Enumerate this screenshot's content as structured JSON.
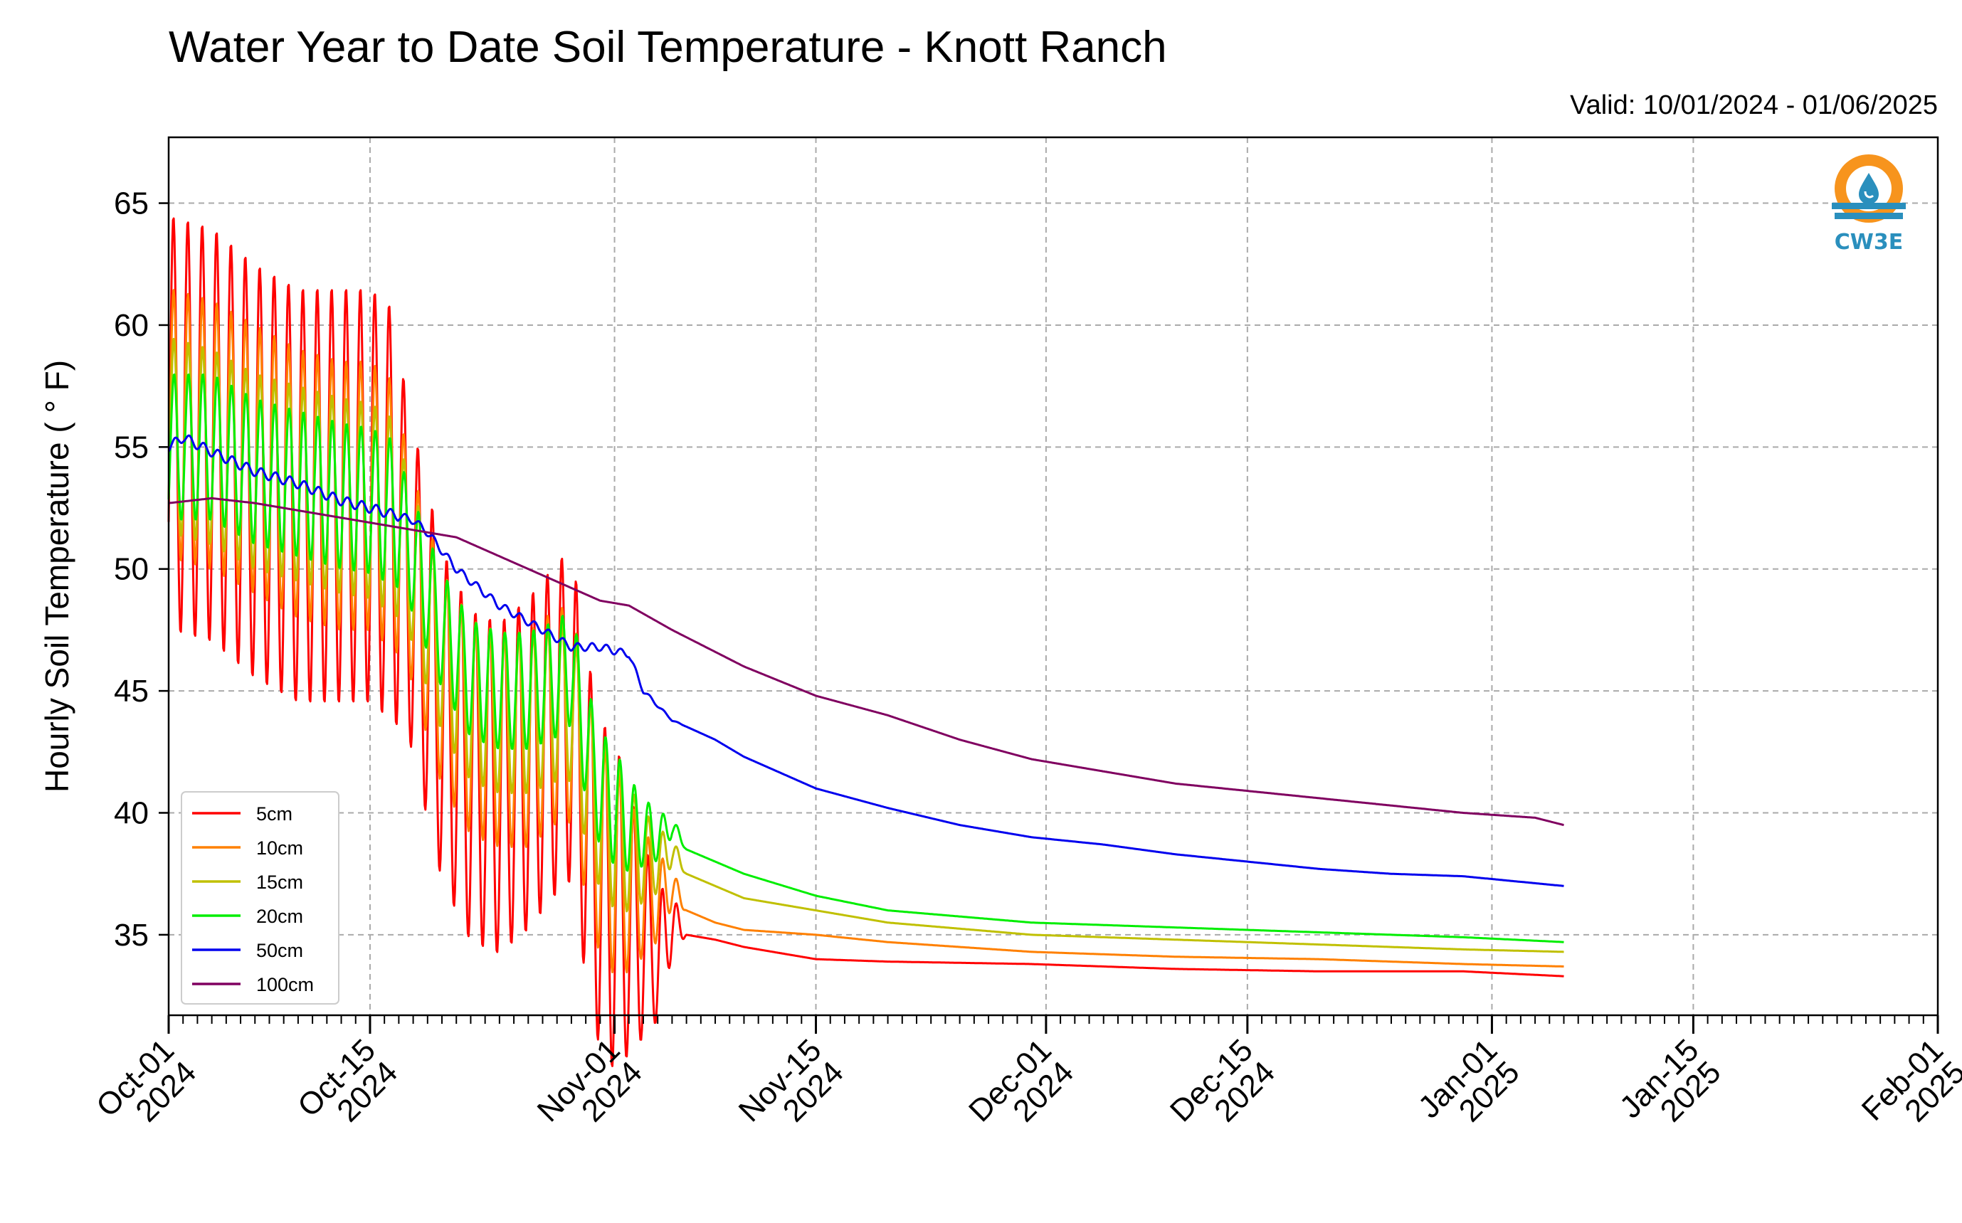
{
  "chart_data": {
    "type": "line",
    "title": "Water Year to Date Soil Temperature - Knott Ranch",
    "subtitle": "Valid: 10/01/2024 - 01/06/2025",
    "ylabel": "Hourly Soil Temperature ($^\\circ$F)",
    "ylabel_display": "Hourly Soil Temperature ( ° F)",
    "xlabel": "",
    "ylim": [
      31.7,
      67.7
    ],
    "xlim_days": [
      0,
      123
    ],
    "yticks": [
      "35",
      "40",
      "45",
      "50",
      "55",
      "60",
      "65"
    ],
    "ytick_values": [
      35,
      40,
      45,
      50,
      55,
      60,
      65
    ],
    "xticks": [
      {
        "day": 0,
        "line1": "Oct-01",
        "line2": "2024"
      },
      {
        "day": 14,
        "line1": "Oct-15",
        "line2": "2024"
      },
      {
        "day": 31,
        "line1": "Nov-01",
        "line2": "2024"
      },
      {
        "day": 45,
        "line1": "Nov-15",
        "line2": "2024"
      },
      {
        "day": 61,
        "line1": "Dec-01",
        "line2": "2024"
      },
      {
        "day": 75,
        "line1": "Dec-15",
        "line2": "2024"
      },
      {
        "day": 92,
        "line1": "Jan-01",
        "line2": "2025"
      },
      {
        "day": 106,
        "line1": "Jan-15",
        "line2": "2025"
      },
      {
        "day": 123,
        "line1": "Feb-01",
        "line2": "2025"
      }
    ],
    "grid": true,
    "legend_position": "lower-left",
    "logo_text": "CW3E",
    "series": [
      {
        "name": "5cm",
        "color": "#ff0000",
        "amp": 8.5,
        "phase": 0.5,
        "points": [
          [
            0,
            56
          ],
          [
            3,
            55.5
          ],
          [
            6,
            54
          ],
          [
            9,
            53
          ],
          [
            12,
            53
          ],
          [
            14,
            53
          ],
          [
            16,
            52
          ],
          [
            17,
            49
          ],
          [
            19,
            44
          ],
          [
            21,
            41.5
          ],
          [
            23,
            41
          ],
          [
            25,
            42
          ],
          [
            27,
            43.5
          ],
          [
            28,
            44
          ],
          [
            29,
            40
          ],
          [
            30,
            37
          ],
          [
            32,
            35.5
          ],
          [
            34,
            34.2
          ],
          [
            35,
            35.5
          ],
          [
            36,
            35
          ],
          [
            38,
            34.8
          ],
          [
            40,
            34.5
          ],
          [
            45,
            34
          ],
          [
            50,
            33.9
          ],
          [
            60,
            33.8
          ],
          [
            70,
            33.6
          ],
          [
            80,
            33.5
          ],
          [
            90,
            33.5
          ],
          [
            97,
            33.3
          ]
        ]
      },
      {
        "name": "10cm",
        "color": "#ff8000",
        "amp": 5.5,
        "phase": 0.6,
        "points": [
          [
            0,
            56
          ],
          [
            3,
            55.5
          ],
          [
            6,
            54.5
          ],
          [
            9,
            53.5
          ],
          [
            12,
            53
          ],
          [
            14,
            53
          ],
          [
            16,
            52
          ],
          [
            17,
            49.5
          ],
          [
            19,
            45.5
          ],
          [
            21,
            43.5
          ],
          [
            23,
            43
          ],
          [
            25,
            43
          ],
          [
            27,
            44
          ],
          [
            28,
            44
          ],
          [
            29,
            41
          ],
          [
            30,
            38.5
          ],
          [
            32,
            37
          ],
          [
            34,
            36.5
          ],
          [
            35,
            37
          ],
          [
            36,
            36
          ],
          [
            38,
            35.5
          ],
          [
            40,
            35.2
          ],
          [
            45,
            35
          ],
          [
            50,
            34.7
          ],
          [
            60,
            34.3
          ],
          [
            70,
            34.1
          ],
          [
            80,
            34
          ],
          [
            90,
            33.8
          ],
          [
            97,
            33.7
          ]
        ]
      },
      {
        "name": "15cm",
        "color": "#c0c000",
        "amp": 4.0,
        "phase": 0.7,
        "points": [
          [
            0,
            55.5
          ],
          [
            3,
            55
          ],
          [
            6,
            54
          ],
          [
            9,
            53.5
          ],
          [
            12,
            53
          ],
          [
            14,
            52.8
          ],
          [
            16,
            52
          ],
          [
            17,
            50
          ],
          [
            19,
            46.5
          ],
          [
            21,
            44.5
          ],
          [
            23,
            44
          ],
          [
            25,
            44
          ],
          [
            27,
            44.5
          ],
          [
            28,
            44.5
          ],
          [
            29,
            42
          ],
          [
            30,
            40
          ],
          [
            32,
            38.5
          ],
          [
            34,
            38
          ],
          [
            35,
            38.5
          ],
          [
            36,
            37.5
          ],
          [
            38,
            37
          ],
          [
            40,
            36.5
          ],
          [
            45,
            36
          ],
          [
            50,
            35.5
          ],
          [
            60,
            35
          ],
          [
            70,
            34.8
          ],
          [
            80,
            34.6
          ],
          [
            90,
            34.4
          ],
          [
            97,
            34.3
          ]
        ]
      },
      {
        "name": "20cm",
        "color": "#00ee00",
        "amp": 3.0,
        "phase": 0.8,
        "points": [
          [
            0,
            55
          ],
          [
            3,
            55
          ],
          [
            6,
            54
          ],
          [
            9,
            53.5
          ],
          [
            12,
            53
          ],
          [
            14,
            52.8
          ],
          [
            16,
            52.2
          ],
          [
            17,
            50.5
          ],
          [
            19,
            47.5
          ],
          [
            21,
            45.5
          ],
          [
            23,
            45
          ],
          [
            25,
            45
          ],
          [
            27,
            45.5
          ],
          [
            28,
            46
          ],
          [
            29,
            43
          ],
          [
            30,
            41
          ],
          [
            32,
            39.5
          ],
          [
            34,
            39
          ],
          [
            35,
            39.5
          ],
          [
            36,
            38.5
          ],
          [
            38,
            38
          ],
          [
            40,
            37.5
          ],
          [
            45,
            36.6
          ],
          [
            50,
            36
          ],
          [
            60,
            35.5
          ],
          [
            70,
            35.3
          ],
          [
            80,
            35.1
          ],
          [
            90,
            34.9
          ],
          [
            97,
            34.7
          ]
        ]
      },
      {
        "name": "50cm",
        "color": "#0000ee",
        "amp": 0.2,
        "phase": 1.2,
        "points": [
          [
            0,
            55
          ],
          [
            1,
            55.4
          ],
          [
            3,
            54.8
          ],
          [
            6,
            54
          ],
          [
            9,
            53.5
          ],
          [
            12,
            52.8
          ],
          [
            14,
            52.5
          ],
          [
            17,
            52
          ],
          [
            18,
            51.5
          ],
          [
            20,
            50
          ],
          [
            23,
            48.5
          ],
          [
            26,
            47.5
          ],
          [
            28,
            46.8
          ],
          [
            30,
            46.8
          ],
          [
            32,
            46.5
          ],
          [
            33,
            45
          ],
          [
            35,
            43.8
          ],
          [
            38,
            43
          ],
          [
            40,
            42.3
          ],
          [
            45,
            41
          ],
          [
            50,
            40.2
          ],
          [
            55,
            39.5
          ],
          [
            60,
            39
          ],
          [
            65,
            38.7
          ],
          [
            70,
            38.3
          ],
          [
            75,
            38
          ],
          [
            80,
            37.7
          ],
          [
            85,
            37.5
          ],
          [
            90,
            37.4
          ],
          [
            97,
            37
          ]
        ]
      },
      {
        "name": "100cm",
        "color": "#800060",
        "amp": 0,
        "phase": 0,
        "points": [
          [
            0,
            52.7
          ],
          [
            3,
            52.9
          ],
          [
            6,
            52.7
          ],
          [
            10,
            52.3
          ],
          [
            15,
            51.8
          ],
          [
            18,
            51.5
          ],
          [
            20,
            51.3
          ],
          [
            25,
            50
          ],
          [
            30,
            48.7
          ],
          [
            32,
            48.5
          ],
          [
            35,
            47.5
          ],
          [
            40,
            46
          ],
          [
            45,
            44.8
          ],
          [
            50,
            44
          ],
          [
            55,
            43
          ],
          [
            60,
            42.2
          ],
          [
            65,
            41.7
          ],
          [
            70,
            41.2
          ],
          [
            75,
            40.9
          ],
          [
            80,
            40.6
          ],
          [
            85,
            40.3
          ],
          [
            90,
            40
          ],
          [
            95,
            39.8
          ],
          [
            97,
            39.5
          ]
        ]
      }
    ]
  }
}
